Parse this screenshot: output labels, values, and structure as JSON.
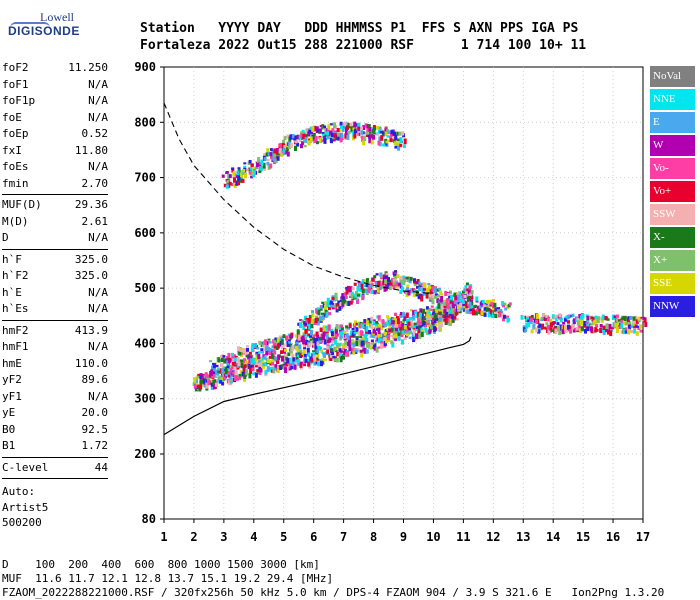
{
  "logo": {
    "line1": "Lowell",
    "line2": "DIGISONDE"
  },
  "header": {
    "line1": "Station   YYYY DAY   DDD HHMMSS P1  FFS S AXN PPS IGA PS",
    "line2": "Fortaleza 2022 Out15 288 221000 RSF      1 714 100 10+ 11"
  },
  "params": {
    "g1": [
      {
        "name": "foF2",
        "value": "11.250"
      },
      {
        "name": "foF1",
        "value": "N/A"
      },
      {
        "name": "foF1p",
        "value": "N/A"
      },
      {
        "name": "foE",
        "value": "N/A"
      },
      {
        "name": "foEp",
        "value": "0.52"
      },
      {
        "name": "fxI",
        "value": "11.80"
      },
      {
        "name": "foEs",
        "value": "N/A"
      },
      {
        "name": "fmin",
        "value": "2.70"
      }
    ],
    "g2": [
      {
        "name": "MUF(D)",
        "value": "29.36"
      },
      {
        "name": "M(D)",
        "value": "2.61"
      },
      {
        "name": "D",
        "value": "N/A"
      }
    ],
    "g3": [
      {
        "name": "h`F",
        "value": "325.0"
      },
      {
        "name": "h`F2",
        "value": "325.0"
      },
      {
        "name": "h`E",
        "value": "N/A"
      },
      {
        "name": "h`Es",
        "value": "N/A"
      }
    ],
    "g4": [
      {
        "name": "hmF2",
        "value": "413.9"
      },
      {
        "name": "hmF1",
        "value": "N/A"
      },
      {
        "name": "hmE",
        "value": "110.0"
      },
      {
        "name": "yF2",
        "value": "89.6"
      },
      {
        "name": "yF1",
        "value": "N/A"
      },
      {
        "name": "yE",
        "value": "20.0"
      },
      {
        "name": "B0",
        "value": "92.5"
      },
      {
        "name": "B1",
        "value": "1.72"
      }
    ],
    "g5": [
      {
        "name": "C-level",
        "value": "44"
      }
    ]
  },
  "auto": {
    "line1": "Auto:",
    "line2": "Artist5",
    "line3": "500200"
  },
  "legend": [
    {
      "label": "NoVal",
      "color": "#808080"
    },
    {
      "label": "NNE",
      "color": "#00e5ee"
    },
    {
      "label": "E",
      "color": "#4aa8ee"
    },
    {
      "label": "W",
      "color": "#b000b0"
    },
    {
      "label": "Vo-",
      "color": "#ff3ea5"
    },
    {
      "label": "Vo+",
      "color": "#e8002e"
    },
    {
      "label": "SSW",
      "color": "#f4b0b0"
    },
    {
      "label": "X-",
      "color": "#1a7a1a"
    },
    {
      "label": "X+",
      "color": "#7fc06a"
    },
    {
      "label": "SSE",
      "color": "#d6d600"
    },
    {
      "label": "NNW",
      "color": "#2a1ee0"
    }
  ],
  "footer": {
    "line1": "D    100  200  400  600  800 1000 1500 3000 [km]",
    "line2": "MUF  11.6 11.7 12.1 12.8 13.7 15.1 19.2 29.4 [MHz]",
    "line3": "FZAOM_2022288221000.RSF / 320fx256h 50 kHz 5.0 km / DPS-4 FZAOM 904 / 3.9 S 321.6 E   Ion2Png 1.3.20"
  },
  "chart_data": {
    "type": "scatter",
    "x_ticks": [
      "1",
      "2",
      "3",
      "4",
      "5",
      "6",
      "7",
      "8",
      "9",
      "10",
      "11",
      "12",
      "13",
      "14",
      "15",
      "16",
      "17"
    ],
    "y_ticks": [
      "80",
      "200",
      "300",
      "400",
      "500",
      "600",
      "700",
      "800",
      "900"
    ],
    "xlim": [
      1,
      17
    ],
    "y_range_km": [
      80,
      900
    ],
    "grid": true,
    "legend_position": "right",
    "traces": [
      {
        "name": "O-trace low",
        "x": [
          2.0,
          2.7,
          3.5,
          4.5,
          5.5,
          6.5,
          7.5,
          8.5,
          9.5,
          10.2,
          10.8
        ],
        "y": [
          330,
          340,
          355,
          365,
          375,
          385,
          400,
          415,
          430,
          445,
          460
        ]
      },
      {
        "name": "O-trace upper band",
        "x": [
          2.5,
          3.5,
          4.5,
          5.5,
          6.5,
          7.5,
          8.5,
          9.5,
          10.5,
          11.2
        ],
        "y": [
          355,
          380,
          395,
          410,
          420,
          430,
          440,
          450,
          465,
          500
        ]
      },
      {
        "name": "F2 spread",
        "x": [
          5.5,
          6.5,
          7.5,
          8.5,
          9.5,
          10.5,
          11.5,
          12.5
        ],
        "y": [
          430,
          470,
          500,
          520,
          500,
          480,
          470,
          460
        ]
      },
      {
        "name": "multi-hop F",
        "x": [
          3.0,
          4.0,
          5.0,
          6.0,
          7.0,
          8.0,
          9.0
        ],
        "y": [
          700,
          720,
          760,
          780,
          790,
          780,
          770
        ]
      },
      {
        "name": "oblique band",
        "x": [
          13.0,
          14.0,
          15.0,
          16.0,
          17.0
        ],
        "y": [
          440,
          440,
          440,
          438,
          436
        ]
      }
    ],
    "profile_curve": {
      "x": [
        1.0,
        2.0,
        3.0,
        4.0,
        5.0,
        6.0,
        7.0,
        8.0,
        9.0,
        10.0,
        10.5,
        11.0,
        11.2,
        11.25
      ],
      "y": [
        235,
        268,
        295,
        308,
        320,
        332,
        345,
        358,
        372,
        385,
        392,
        398,
        405,
        412
      ]
    },
    "upper_dashed_curve": {
      "x": [
        1.0,
        1.5,
        2.0,
        3.0,
        4.0,
        5.0,
        6.0,
        7.0,
        8.0,
        9.0,
        10.0
      ],
      "y": [
        835,
        770,
        722,
        660,
        610,
        570,
        540,
        520,
        505,
        495,
        490
      ]
    }
  }
}
